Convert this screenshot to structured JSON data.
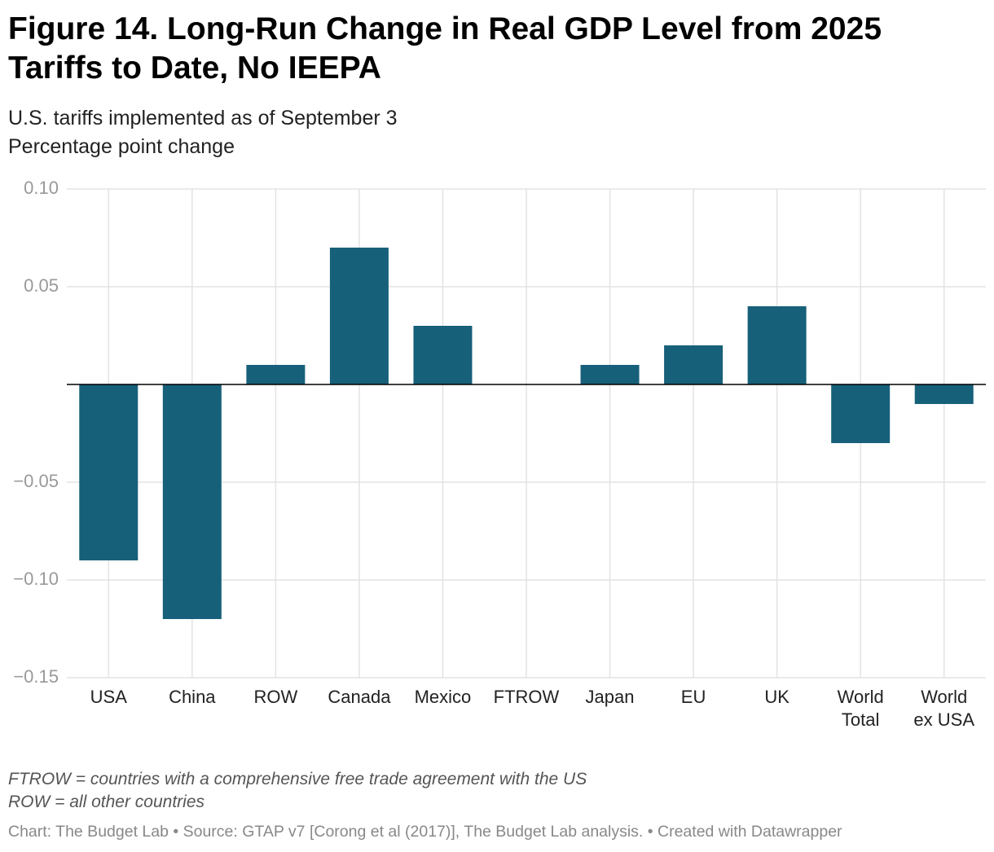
{
  "chart_data": {
    "type": "bar",
    "title": "Figure 14. Long-Run Change in Real GDP Level from 2025 Tariffs to Date, No IEEPA",
    "subtitle": "U.S. tariffs implemented as of September 3",
    "y_label": "Percentage point change",
    "categories": [
      "USA",
      "China",
      "ROW",
      "Canada",
      "Mexico",
      "FTROW",
      "Japan",
      "EU",
      "UK",
      "World Total",
      "World ex USA"
    ],
    "values": [
      -0.09,
      -0.12,
      0.01,
      0.07,
      0.03,
      0,
      0.01,
      0.02,
      0.04,
      -0.03,
      -0.01
    ],
    "color": "#17607a",
    "ylim": [
      -0.15,
      0.1
    ],
    "yticks": [
      {
        "value": 0.1,
        "label": "0.10"
      },
      {
        "value": 0.05,
        "label": "0.05"
      },
      {
        "value": -0.05,
        "label": "−0.05"
      },
      {
        "value": -0.1,
        "label": "−0.10"
      },
      {
        "value": -0.15,
        "label": "−0.15"
      }
    ],
    "grid": true,
    "notes": [
      "FTROW = countries with a comprehensive free trade agreement with the US",
      "ROW = all other countries"
    ],
    "source": "Chart: The Budget Lab • Source: GTAP v7 [Corong et al (2017)], The Budget Lab analysis. • Created with Datawrapper"
  }
}
